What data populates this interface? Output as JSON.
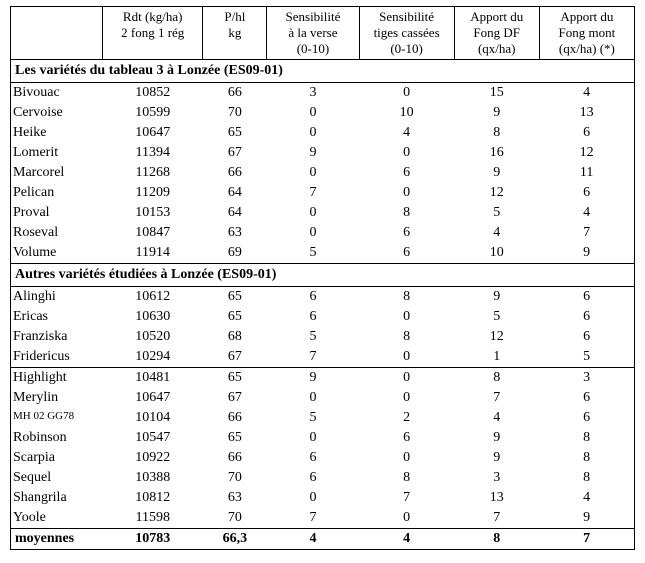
{
  "columns": [
    {
      "lines": [
        ""
      ],
      "class": "c0"
    },
    {
      "lines": [
        "Rdt (kg/ha)",
        "2 fong 1 rég"
      ],
      "class": "c1"
    },
    {
      "lines": [
        "P/hl",
        "kg"
      ],
      "class": "c2"
    },
    {
      "lines": [
        "Sensibilité",
        "à la verse",
        "(0-10)"
      ],
      "class": "c3"
    },
    {
      "lines": [
        "Sensibilité",
        "tiges cassées",
        "(0-10)"
      ],
      "class": "c4"
    },
    {
      "lines": [
        "Apport du",
        "Fong DF",
        "(qx/ha)"
      ],
      "class": "c5"
    },
    {
      "lines": [
        "Apport du",
        "Fong mont",
        "(qx/ha) (*)"
      ],
      "class": "c6"
    }
  ],
  "sections": [
    {
      "title": "Les variétés du tableau 3 à Lonzée (ES09-01)",
      "rows": [
        {
          "name": "Bivouac",
          "rdt": "10852",
          "phl": "66",
          "verse": "3",
          "tc": "0",
          "df": "15",
          "mont": "4"
        },
        {
          "name": "Cervoise",
          "rdt": "10599",
          "phl": "70",
          "verse": "0",
          "tc": "10",
          "df": "9",
          "mont": "13"
        },
        {
          "name": "Heike",
          "rdt": "10647",
          "phl": "65",
          "verse": "0",
          "tc": "4",
          "df": "8",
          "mont": "6"
        },
        {
          "name": "Lomerit",
          "rdt": "11394",
          "phl": "67",
          "verse": "9",
          "tc": "0",
          "df": "16",
          "mont": "12"
        },
        {
          "name": "Marcorel",
          "rdt": "11268",
          "phl": "66",
          "verse": "0",
          "tc": "6",
          "df": "9",
          "mont": "11"
        },
        {
          "name": "Pelican",
          "rdt": "11209",
          "phl": "64",
          "verse": "7",
          "tc": "0",
          "df": "12",
          "mont": "6"
        },
        {
          "name": "Proval",
          "rdt": "10153",
          "phl": "64",
          "verse": "0",
          "tc": "8",
          "df": "5",
          "mont": "4"
        },
        {
          "name": "Roseval",
          "rdt": "10847",
          "phl": "63",
          "verse": "0",
          "tc": "6",
          "df": "4",
          "mont": "7"
        },
        {
          "name": "Volume",
          "rdt": "11914",
          "phl": "69",
          "verse": "5",
          "tc": "6",
          "df": "10",
          "mont": "9"
        }
      ]
    },
    {
      "title": "Autres variétés étudiées à Lonzée (ES09-01)",
      "rows": [
        {
          "name": "Alinghi",
          "rdt": "10612",
          "phl": "65",
          "verse": "6",
          "tc": "8",
          "df": "9",
          "mont": "6"
        },
        {
          "name": "Ericas",
          "rdt": "10630",
          "phl": "65",
          "verse": "6",
          "tc": "0",
          "df": "5",
          "mont": "6"
        },
        {
          "name": "Franziska",
          "rdt": "10520",
          "phl": "68",
          "verse": "5",
          "tc": "8",
          "df": "12",
          "mont": "6"
        },
        {
          "name": "Fridericus",
          "rdt": "10294",
          "phl": "67",
          "verse": "7",
          "tc": "0",
          "df": "1",
          "mont": "5"
        },
        {
          "name": "Highlight",
          "rdt": "10481",
          "phl": "65",
          "verse": "9",
          "tc": "0",
          "df": "8",
          "mont": "3",
          "rule_top": true
        },
        {
          "name": "Merylin",
          "rdt": "10647",
          "phl": "67",
          "verse": "0",
          "tc": "0",
          "df": "7",
          "mont": "6"
        },
        {
          "name": "MH 02 GG78",
          "rdt": "10104",
          "phl": "66",
          "verse": "5",
          "tc": "2",
          "df": "4",
          "mont": "6",
          "small": true
        },
        {
          "name": "Robinson",
          "rdt": "10547",
          "phl": "65",
          "verse": "0",
          "tc": "6",
          "df": "9",
          "mont": "8"
        },
        {
          "name": "Scarpia",
          "rdt": "10922",
          "phl": "66",
          "verse": "6",
          "tc": "0",
          "df": "9",
          "mont": "8"
        },
        {
          "name": "Sequel",
          "rdt": "10388",
          "phl": "70",
          "verse": "6",
          "tc": "8",
          "df": "3",
          "mont": "8"
        },
        {
          "name": "Shangrila",
          "rdt": "10812",
          "phl": "63",
          "verse": "0",
          "tc": "7",
          "df": "13",
          "mont": "4"
        },
        {
          "name": "Yoole",
          "rdt": "11598",
          "phl": "70",
          "verse": "7",
          "tc": "0",
          "df": "7",
          "mont": "9"
        }
      ]
    }
  ],
  "totals": {
    "label": "moyennes",
    "rdt": "10783",
    "phl": "66,3",
    "verse": "4",
    "tc": "4",
    "df": "8",
    "mont": "7"
  }
}
